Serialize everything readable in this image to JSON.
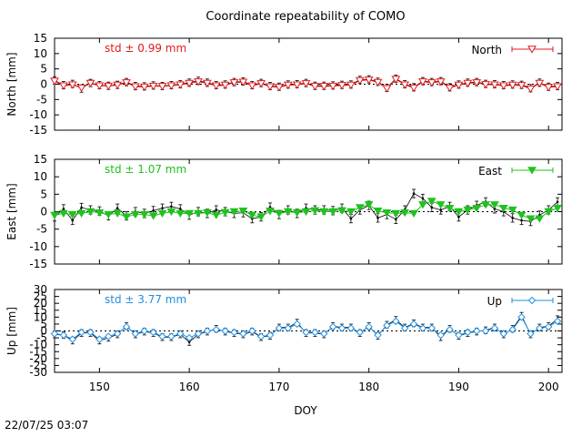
{
  "title": "Coordinate repeatability of COMO",
  "timestamp": "22/07/25 03:07",
  "colors": {
    "north": "#e41a1c",
    "east": "#1fc21f",
    "up": "#1f8fe0",
    "raw": "#000000",
    "std_north": "#e41a1c",
    "std_east": "#1fc21f",
    "std_up": "#1f8fe0"
  },
  "chart_data": {
    "type": "scatter",
    "title": "Coordinate repeatability of COMO",
    "xlabel": "DOY",
    "xlim": [
      145,
      201.5
    ],
    "x_ticks": [
      150,
      160,
      170,
      180,
      190,
      200
    ],
    "x": [
      145,
      146,
      147,
      148,
      149,
      150,
      151,
      152,
      153,
      154,
      155,
      156,
      157,
      158,
      159,
      160,
      161,
      162,
      163,
      164,
      165,
      166,
      167,
      168,
      169,
      170,
      171,
      172,
      173,
      174,
      175,
      176,
      177,
      178,
      179,
      180,
      181,
      182,
      183,
      184,
      185,
      186,
      187,
      188,
      189,
      190,
      191,
      192,
      193,
      194,
      195,
      196,
      197,
      198,
      199,
      200,
      201
    ],
    "panels": [
      {
        "name": "North",
        "ylabel": "North [mm]",
        "ylim": [
          -15,
          15
        ],
        "y_ticks": [
          -15,
          -10,
          -5,
          0,
          5,
          10,
          15
        ],
        "legend": "North",
        "std_label": "std ± 0.99 mm",
        "filled_marker": false,
        "values": [
          1,
          -0.5,
          -0.2,
          -1.2,
          0.3,
          -0.5,
          -0.6,
          -0.3,
          0.5,
          -0.8,
          -0.9,
          -0.6,
          -0.7,
          -0.5,
          -0.2,
          0.3,
          0.8,
          0.3,
          -0.5,
          -0.3,
          0.5,
          0.7,
          -0.5,
          0.2,
          -0.8,
          -1,
          -0.3,
          -0.2,
          0.2,
          -0.7,
          -0.7,
          -0.6,
          -0.4,
          -0.3,
          1.2,
          1.4,
          0.6,
          -1.4,
          1.6,
          -0.2,
          -1.2,
          0.8,
          0.5,
          0.8,
          -1.2,
          -0.3,
          0.3,
          0.5,
          -0.1,
          -0.2,
          -0.5,
          -0.3,
          -0.4,
          -1.5,
          0.3,
          -1,
          -0.8
        ],
        "raw": [
          1.2,
          -0.3,
          0.1,
          -1.4,
          0.4,
          -0.3,
          -0.5,
          -0.2,
          0.7,
          -0.6,
          -0.7,
          -0.4,
          -0.6,
          -0.3,
          0,
          0.5,
          1.1,
          0.5,
          -0.3,
          -0.1,
          0.7,
          0.9,
          -0.3,
          0.4,
          -0.6,
          -0.8,
          -0.1,
          0,
          0.4,
          -0.5,
          -0.5,
          -0.4,
          -0.2,
          -0.1,
          1.4,
          1.6,
          0.8,
          -1.2,
          1.8,
          0,
          -1,
          1,
          0.7,
          1,
          -1,
          -0.1,
          0.5,
          0.7,
          0.1,
          0,
          -0.3,
          -0.1,
          -0.2,
          -1.3,
          0.5,
          -0.8,
          -0.6
        ]
      },
      {
        "name": "East",
        "ylabel": "East [mm]",
        "ylim": [
          -15,
          15
        ],
        "y_ticks": [
          -15,
          -10,
          -5,
          0,
          5,
          10,
          15
        ],
        "legend": "East",
        "std_label": "std ± 1.07 mm",
        "filled_marker": true,
        "values": [
          -1,
          -0.5,
          -0.8,
          -0.5,
          0,
          -0.3,
          -0.8,
          -0.5,
          -1.5,
          -0.8,
          -0.8,
          -1.2,
          -0.5,
          0,
          -0.5,
          -0.5,
          -0.5,
          -0.3,
          -1,
          -0.2,
          0,
          0.2,
          -1,
          -1.5,
          0.2,
          -0.5,
          0,
          -0.3,
          0,
          0.3,
          0,
          0,
          0.3,
          0,
          1.2,
          2,
          0.2,
          -0.3,
          -0.5,
          -0.3,
          -0.5,
          2,
          3,
          2,
          1,
          0,
          0.5,
          1,
          2,
          2,
          1,
          0.5,
          -1,
          -2,
          -2,
          0,
          1
        ],
        "raw": [
          -1.5,
          0.8,
          -2.5,
          1.2,
          0.5,
          0.2,
          -1.2,
          1,
          -1.2,
          0,
          -0.5,
          0.3,
          1,
          1.5,
          0.8,
          -1,
          0,
          -0.5,
          0.5,
          0,
          -0.5,
          -0.3,
          -2,
          -1.5,
          1.3,
          -0.8,
          0.5,
          -0.5,
          1,
          0.5,
          0.5,
          0.3,
          1,
          -2,
          0.5,
          1.8,
          -1.8,
          -0.8,
          -2.2,
          0.5,
          5.2,
          3.8,
          1.2,
          0.5,
          1.5,
          -1.5,
          0.5,
          1.8,
          2.8,
          0.8,
          0,
          -1.8,
          -2.5,
          -2.8,
          -1,
          0.5,
          2.8
        ]
      },
      {
        "name": "Up",
        "ylabel": "Up [mm]",
        "ylim": [
          -30,
          30
        ],
        "y_ticks": [
          -30,
          -25,
          -20,
          -15,
          -10,
          -5,
          0,
          5,
          10,
          15,
          20,
          25,
          30
        ],
        "legend": "Up",
        "std_label": "std ± 3.77 mm",
        "filled_marker": false,
        "values": [
          -2,
          -3,
          -6,
          -1,
          -1,
          -6,
          -4,
          -2,
          3,
          -2,
          0,
          -1,
          -4,
          -4,
          -2,
          -5,
          -2,
          0,
          1,
          0,
          -1,
          -2,
          0,
          -4,
          -3,
          2,
          2,
          5,
          -1,
          -1,
          -2,
          3,
          2,
          2,
          -1,
          3,
          -3,
          4,
          7,
          2,
          5,
          2,
          2,
          -3,
          1,
          -3,
          -1,
          0,
          0,
          2,
          -2,
          1,
          10,
          -2,
          2,
          3,
          7
        ],
        "raw": [
          -2.5,
          -3,
          -7,
          -1.5,
          -1.5,
          -7,
          -5,
          -2.5,
          3.5,
          -2.5,
          -0.5,
          -1.5,
          -4.5,
          -4.5,
          -2.5,
          -8,
          -2.5,
          -0.5,
          1.5,
          -0.5,
          -1.5,
          -2.5,
          -0.5,
          -4.5,
          -3.5,
          2.5,
          2.5,
          6,
          -1.5,
          -1.5,
          -2.5,
          3.5,
          2.5,
          2.5,
          -1.5,
          3.5,
          -3.5,
          4.5,
          8,
          2.5,
          5.5,
          2.5,
          2.5,
          -4.5,
          1.5,
          -3.5,
          -1.5,
          -0.5,
          0.5,
          2.5,
          -2.5,
          1.5,
          11,
          -2.5,
          2.5,
          3.5,
          8.5
        ]
      }
    ]
  }
}
